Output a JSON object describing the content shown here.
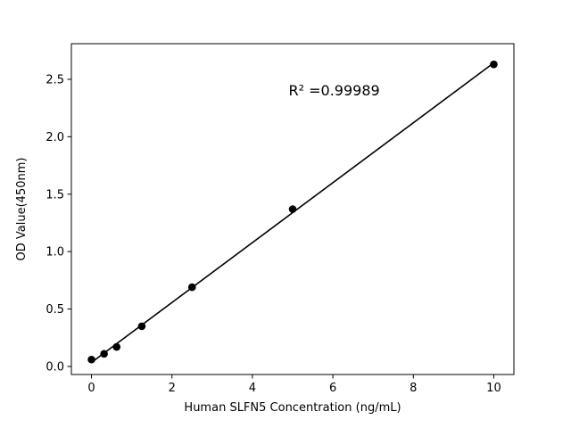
{
  "figure": {
    "background": "#ffffff"
  },
  "chart_data": {
    "type": "scatter",
    "title": "",
    "xlabel": "Human SLFN5 Concentration (ng/mL)",
    "ylabel": "OD Value(450nm)",
    "annotation": {
      "text": "R² =0.99989",
      "x": 4.9,
      "y": 2.36
    },
    "x": [
      0,
      0.3125,
      0.625,
      1.25,
      2.5,
      5,
      10
    ],
    "y": [
      0.06,
      0.11,
      0.17,
      0.35,
      0.69,
      1.37,
      2.63
    ],
    "fit_line": {
      "x_start": 0,
      "x_end": 10,
      "style": "linear-regression"
    },
    "xlim": [
      -0.5,
      10.5
    ],
    "ylim": [
      -0.07,
      2.81
    ],
    "xticks": [
      0,
      2,
      4,
      6,
      8,
      10
    ],
    "xtick_labels": [
      "0",
      "2",
      "4",
      "6",
      "8",
      "10"
    ],
    "yticks": [
      0.0,
      0.5,
      1.0,
      1.5,
      2.0,
      2.5
    ],
    "ytick_labels": [
      "0.0",
      "0.5",
      "1.0",
      "1.5",
      "2.0",
      "2.5"
    ],
    "marker_color": "#000000",
    "line_color": "#000000",
    "frame_color": "#000000",
    "grid": false,
    "legend": null
  }
}
